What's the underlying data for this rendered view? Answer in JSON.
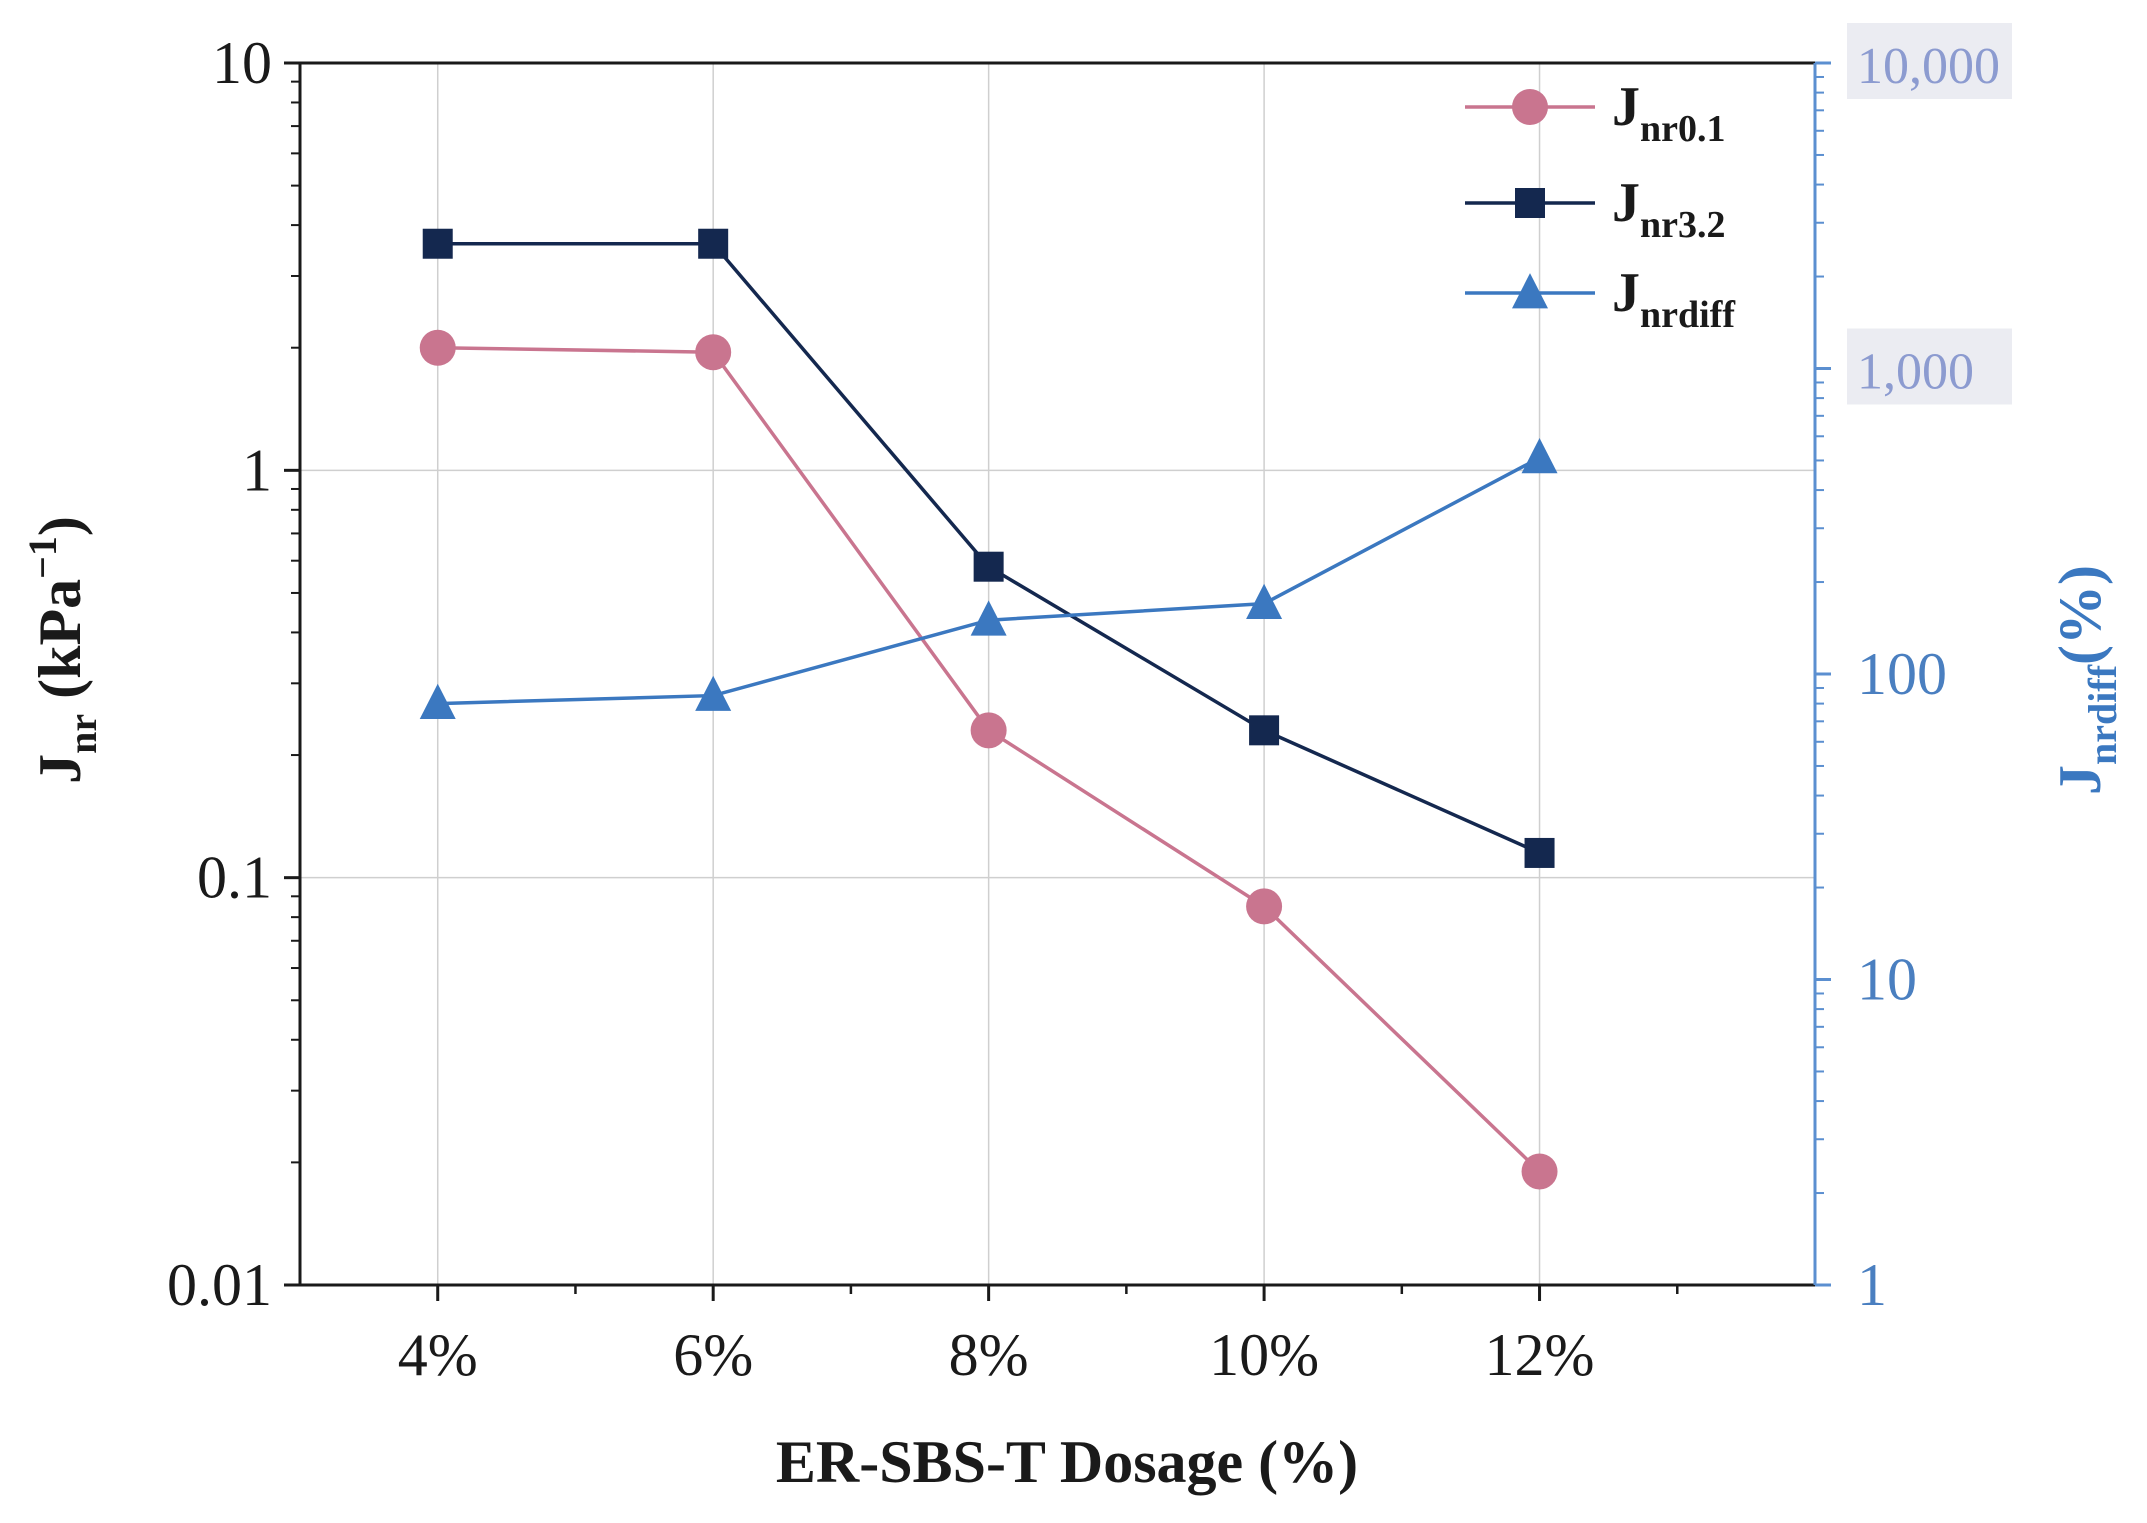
{
  "chart_data": {
    "type": "line",
    "xlabel": "ER-SBS-T Dosage (%)",
    "categories": [
      "4%",
      "6%",
      "8%",
      "10%",
      "12%"
    ],
    "y_left": {
      "label_main": "J",
      "label_sub": "nr",
      "label_unit": " (kPa",
      "label_sup": "−1",
      "label_close": ")",
      "scale": "log",
      "ylim": [
        0.01,
        10
      ],
      "ticks": [
        {
          "value": 0.01,
          "label": "0.01"
        },
        {
          "value": 0.1,
          "label": "0.1"
        },
        {
          "value": 1,
          "label": "1"
        },
        {
          "value": 10,
          "label": "10"
        }
      ],
      "color": "#1a1a1a"
    },
    "y_right": {
      "label_main": "J",
      "label_sub": "nrdiff",
      "label_unit": "(%)",
      "scale": "log",
      "ylim": [
        1,
        10000
      ],
      "ticks": [
        {
          "value": 1,
          "label": "1"
        },
        {
          "value": 10,
          "label": "10"
        },
        {
          "value": 100,
          "label": "100"
        },
        {
          "value": 1000,
          "label": "1,000"
        },
        {
          "value": 10000,
          "label": "10,000"
        }
      ],
      "color": "#4a7fc0"
    },
    "series": [
      {
        "name": "Jnr0.1",
        "name_main": "J",
        "name_sub": "nr0.1",
        "axis": "left",
        "marker": "circle",
        "color": "#c9758f",
        "values": [
          2.0,
          1.95,
          0.23,
          0.085,
          0.019
        ]
      },
      {
        "name": "Jnr3.2",
        "name_main": "J",
        "name_sub": "nr3.2",
        "axis": "left",
        "marker": "square",
        "color": "#14284f",
        "values": [
          3.6,
          3.6,
          0.58,
          0.23,
          0.115
        ]
      },
      {
        "name": "Jnrdiff",
        "name_main": "J",
        "name_sub": "nrdiff",
        "axis": "right",
        "marker": "triangle",
        "color": "#3b78c0",
        "values": [
          80,
          85,
          150,
          170,
          510
        ]
      }
    ],
    "grid": true,
    "legend_position": "top-right"
  }
}
